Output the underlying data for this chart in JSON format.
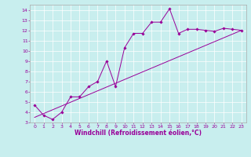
{
  "xlabel": "Windchill (Refroidissement éolien,°C)",
  "bg_color": "#c8eeee",
  "line_color": "#990099",
  "grid_color": "#ffffff",
  "scatter_x": [
    0,
    1,
    2,
    3,
    4,
    5,
    6,
    7,
    8,
    9,
    10,
    11,
    12,
    13,
    14,
    15,
    16,
    17,
    18,
    19,
    20,
    21,
    22,
    23
  ],
  "scatter_y": [
    4.7,
    3.7,
    3.3,
    4.0,
    5.5,
    5.5,
    6.5,
    7.0,
    9.0,
    6.5,
    10.3,
    11.7,
    11.7,
    12.8,
    12.8,
    14.1,
    11.7,
    12.1,
    12.1,
    12.0,
    11.9,
    12.2,
    12.1,
    12.0
  ],
  "trend_x": [
    0,
    23
  ],
  "trend_y": [
    3.5,
    12.0
  ],
  "xlim": [
    -0.5,
    23.5
  ],
  "ylim": [
    3,
    14.5
  ],
  "xticks": [
    0,
    1,
    2,
    3,
    4,
    5,
    6,
    7,
    8,
    9,
    10,
    11,
    12,
    13,
    14,
    15,
    16,
    17,
    18,
    19,
    20,
    21,
    22,
    23
  ],
  "yticks": [
    3,
    4,
    5,
    6,
    7,
    8,
    9,
    10,
    11,
    12,
    13,
    14
  ],
  "tick_fontsize": 4.5,
  "xlabel_fontsize": 5.5
}
